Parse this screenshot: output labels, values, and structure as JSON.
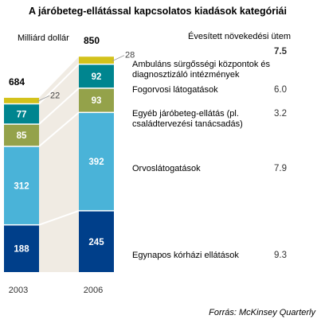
{
  "chart_data": {
    "type": "bar",
    "stacked": true,
    "title": "A járóbeteg-ellátással kapcsolatos kiadások kategóriái",
    "ylabel": "Milliárd dollár",
    "categories": [
      "2003",
      "2006"
    ],
    "totals": [
      "684",
      "850"
    ],
    "growth_header": "Évesített növekedési ütem",
    "series": [
      {
        "name": "Egynapos kórházi ellátások",
        "values": [
          188,
          245
        ],
        "growth": "9.3",
        "color": "#003f8a"
      },
      {
        "name": "Orvoslátogatások",
        "values": [
          312,
          392
        ],
        "growth": "7.9",
        "color": "#4ab3d8"
      },
      {
        "name": "Egyéb járóbeteg-ellátás (pl. családtervezési tanácsadás)",
        "values": [
          85,
          93
        ],
        "growth": "3.2",
        "color": "#94a24a"
      },
      {
        "name": "Fogorvosi látogatások",
        "values": [
          77,
          92
        ],
        "growth": "6.0",
        "color": "#00858f"
      },
      {
        "name": "Ambuláns sürgősségi központok és diagnosztizáló intézmények",
        "values": [
          22,
          28
        ],
        "growth": "7.5",
        "color": "#d3c21b"
      }
    ],
    "source": "Forrás: McKinsey Quarterly"
  }
}
